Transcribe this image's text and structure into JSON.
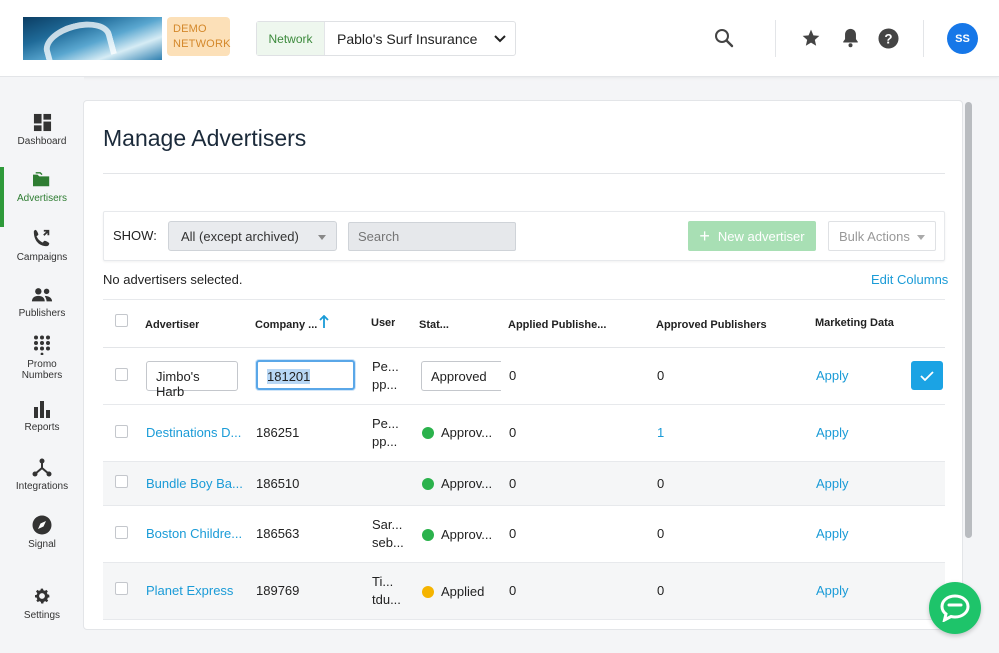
{
  "header": {
    "demo_badge_line1": "DEMO",
    "demo_badge_line2": "NETWORK",
    "network_label": "Network",
    "network_name": "Pablo's Surf Insurance",
    "avatar_initials": "SS"
  },
  "sidebar": {
    "items": [
      {
        "label": "Dashboard",
        "icon": "dashboard-icon"
      },
      {
        "label": "Advertisers",
        "icon": "folder-icon",
        "active": true
      },
      {
        "label": "Campaigns",
        "icon": "phone-forward-icon"
      },
      {
        "label": "Publishers",
        "icon": "people-icon"
      },
      {
        "label_line1": "Promo",
        "label_line2": "Numbers",
        "icon": "dialpad-icon"
      },
      {
        "label": "Reports",
        "icon": "bar-chart-icon"
      },
      {
        "label": "Integrations",
        "icon": "hub-icon"
      },
      {
        "label": "Signal",
        "icon": "compass-icon"
      },
      {
        "label": "Settings",
        "icon": "gear-icon"
      }
    ]
  },
  "main": {
    "title": "Manage Advertisers",
    "show_label": "SHOW:",
    "show_value": "All (except archived)",
    "search_placeholder": "Search",
    "new_advertiser_label": "New advertiser",
    "bulk_actions_label": "Bulk Actions",
    "selection_text": "No advertisers selected.",
    "edit_columns_label": "Edit Columns"
  },
  "table": {
    "headers": {
      "advertiser": "Advertiser",
      "company": "Company ...",
      "user": "User",
      "status": "Stat...",
      "applied": "Applied Publishe...",
      "approved": "Approved Publishers",
      "marketing": "Marketing Data"
    },
    "rows": [
      {
        "advertiser": "Jimbo's Harb",
        "company": "181201",
        "user1": "Pe...",
        "user2": "pp...",
        "status": "Approved",
        "applied": "0",
        "approved": "0",
        "marketing": "Apply"
      },
      {
        "advertiser": "Destinations D...",
        "company": "186251",
        "user1": "Pe...",
        "user2": "pp...",
        "status": "Approv...",
        "applied": "0",
        "approved": "1",
        "marketing": "Apply"
      },
      {
        "advertiser": "Bundle Boy Ba...",
        "company": "186510",
        "user1": "",
        "user2": "",
        "status": "Approv...",
        "applied": "0",
        "approved": "0",
        "marketing": "Apply"
      },
      {
        "advertiser": "Boston Childre...",
        "company": "186563",
        "user1": "Sar...",
        "user2": "seb...",
        "status": "Approv...",
        "applied": "0",
        "approved": "0",
        "marketing": "Apply"
      },
      {
        "advertiser": "Planet Express",
        "company": "189769",
        "user1": "Ti...",
        "user2": "tdu...",
        "status": "Applied",
        "applied": "0",
        "approved": "0",
        "marketing": "Apply"
      }
    ]
  },
  "colors": {
    "accent_blue": "#1a9bd7",
    "approved_green": "#2bb24c",
    "applied_yellow": "#f5b400",
    "nav_active": "#2e7d32"
  }
}
